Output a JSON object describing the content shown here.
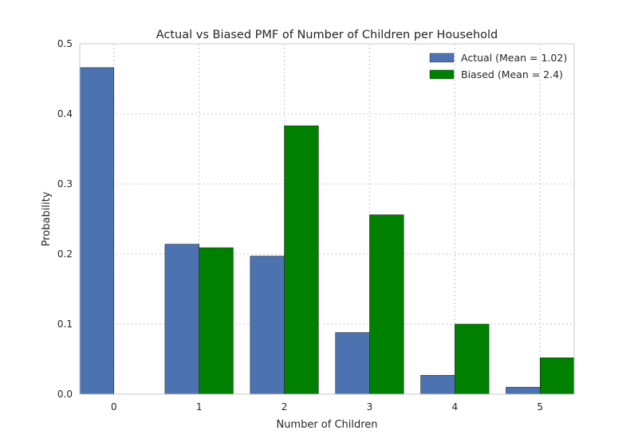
{
  "chart_data": {
    "type": "bar",
    "title": "Actual vs Biased PMF of Number of Children per Household",
    "xlabel": "Number of Children",
    "ylabel": "Probability",
    "categories": [
      "0",
      "1",
      "2",
      "3",
      "4",
      "5"
    ],
    "yticks": [
      "0.0",
      "0.1",
      "0.2",
      "0.3",
      "0.4",
      "0.5"
    ],
    "ylim": [
      0,
      0.5
    ],
    "grid": true,
    "legend_position": "top-right",
    "series": [
      {
        "name": "Actual (Mean = 1.02)",
        "color": "#4c72b0",
        "values": [
          0.466,
          0.214,
          0.197,
          0.088,
          0.027,
          0.01
        ]
      },
      {
        "name": "Biased (Mean = 2.4)",
        "color": "#008000",
        "values": [
          0.0,
          0.209,
          0.383,
          0.256,
          0.1,
          0.052
        ]
      }
    ]
  }
}
